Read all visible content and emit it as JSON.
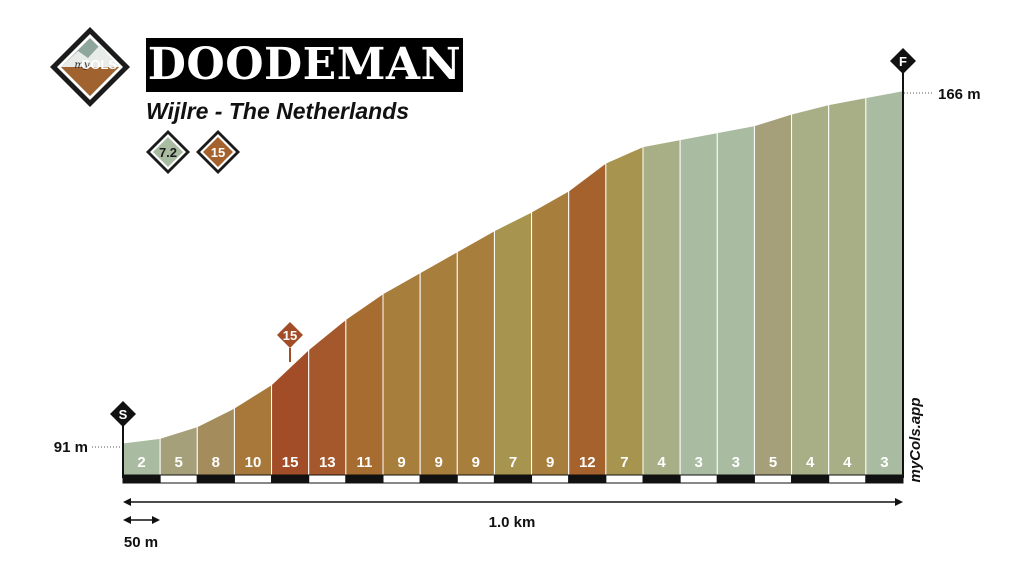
{
  "title": "DOODEMAN",
  "subtitle": "Wijlre - The Netherlands",
  "logo_text": {
    "top": "my",
    "bottom": "COLS"
  },
  "badges": [
    {
      "value": "7.2",
      "color": "#a9bba0"
    },
    {
      "value": "15",
      "color": "#a6622c"
    }
  ],
  "watermark": "myCols.app",
  "start_marker": "S",
  "finish_marker": "F",
  "max_marker": "15",
  "chart_data": {
    "type": "area",
    "segment_length_m": 50,
    "total_distance_label": "1.0 km",
    "scale_label": "50 m",
    "start_elevation_label": "91 m",
    "finish_elevation_label": "166 m",
    "ylim": [
      91,
      166
    ],
    "x": [
      0,
      50,
      100,
      150,
      200,
      250,
      300,
      350,
      400,
      450,
      500,
      550,
      600,
      650,
      700,
      750,
      800,
      850,
      900,
      950,
      1000,
      1050
    ],
    "elevation": [
      91,
      92,
      94.5,
      98.5,
      103.5,
      111,
      117.5,
      123,
      127.5,
      132,
      136.5,
      140.5,
      145,
      151,
      154.5,
      156,
      157.5,
      159,
      161.5,
      163.5,
      165,
      166.5
    ],
    "gradients": [
      2,
      5,
      8,
      10,
      15,
      13,
      11,
      9,
      9,
      9,
      7,
      9,
      12,
      7,
      4,
      3,
      3,
      5,
      4,
      4,
      3
    ],
    "colors": [
      "#a9bba0",
      "#a6a07a",
      "#a48c5c",
      "#a7783a",
      "#a24c28",
      "#a5582c",
      "#a76c30",
      "#a87e3c",
      "#a87e3c",
      "#a87e3c",
      "#a7944f",
      "#a87e3c",
      "#a6622c",
      "#a7944f",
      "#a8af87",
      "#a9bba0",
      "#a9bba0",
      "#a6a07a",
      "#a8af87",
      "#a8af87",
      "#a9bba0"
    ]
  }
}
